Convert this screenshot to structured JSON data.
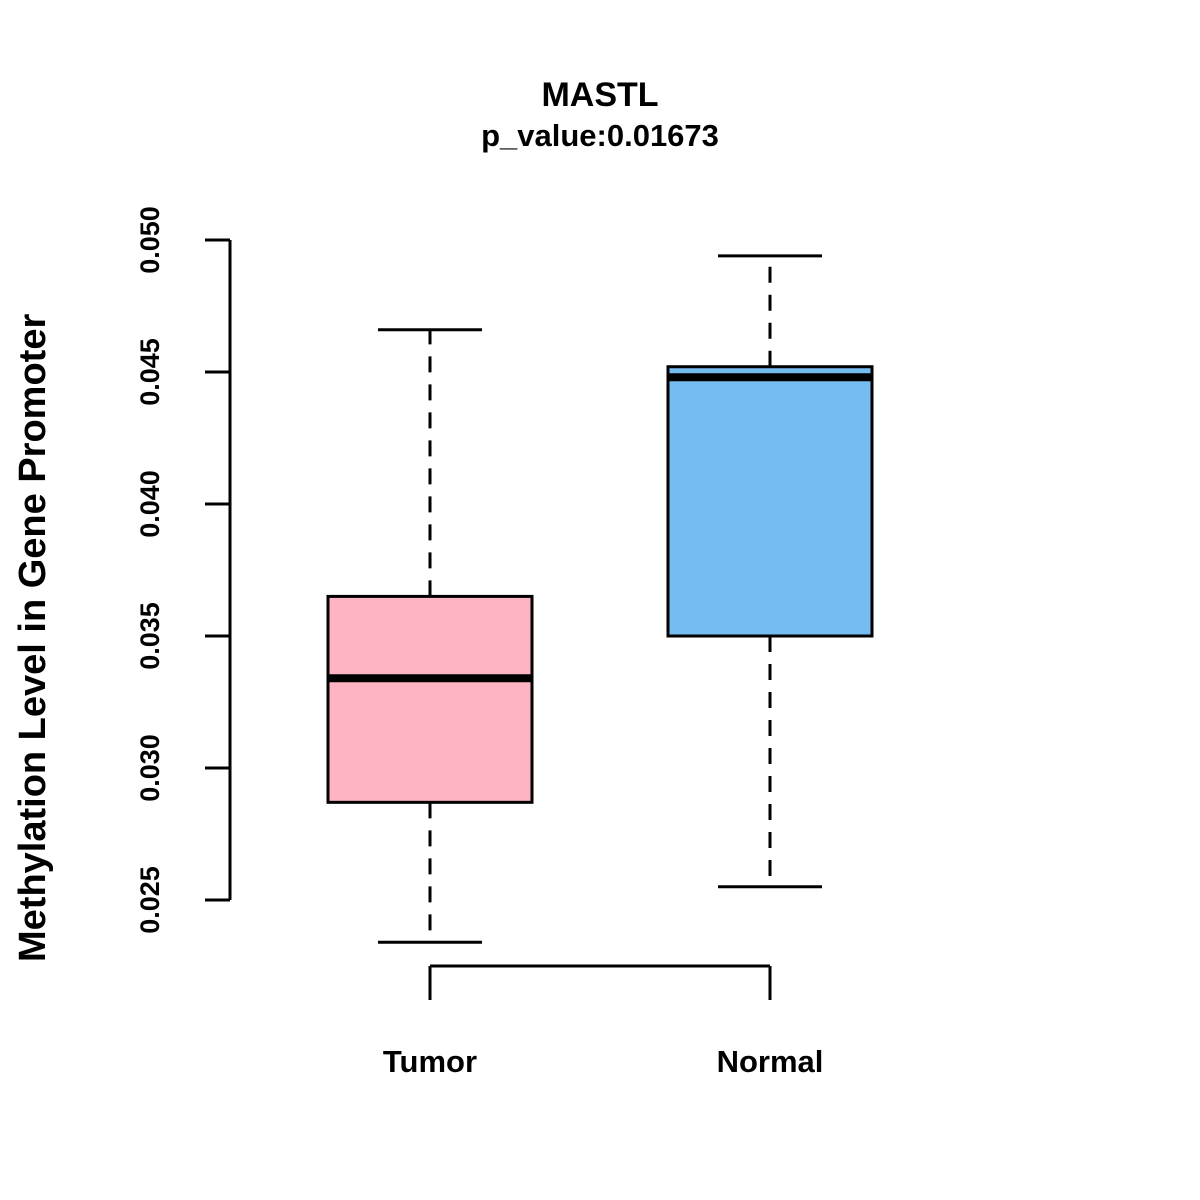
{
  "chart_data": {
    "type": "boxplot",
    "title": "MASTL",
    "subtitle": "p_value:0.01673",
    "ylabel": "Methylation Level in Gene Promoter",
    "ylim": [
      0.025,
      0.05
    ],
    "ytick_labels": [
      "0.025",
      "0.030",
      "0.035",
      "0.040",
      "0.045",
      "0.050"
    ],
    "categories": [
      "Tumor",
      "Normal"
    ],
    "series": [
      {
        "name": "Tumor",
        "color": "#FFB4C4",
        "lower_whisker": 0.0234,
        "q1": 0.0287,
        "median": 0.0334,
        "q3": 0.0365,
        "upper_whisker": 0.0466
      },
      {
        "name": "Normal",
        "color": "#75BCF0",
        "lower_whisker": 0.0255,
        "q1": 0.035,
        "median": 0.0448,
        "q3": 0.0452,
        "upper_whisker": 0.0494
      }
    ],
    "grid": false,
    "legend": "none"
  }
}
